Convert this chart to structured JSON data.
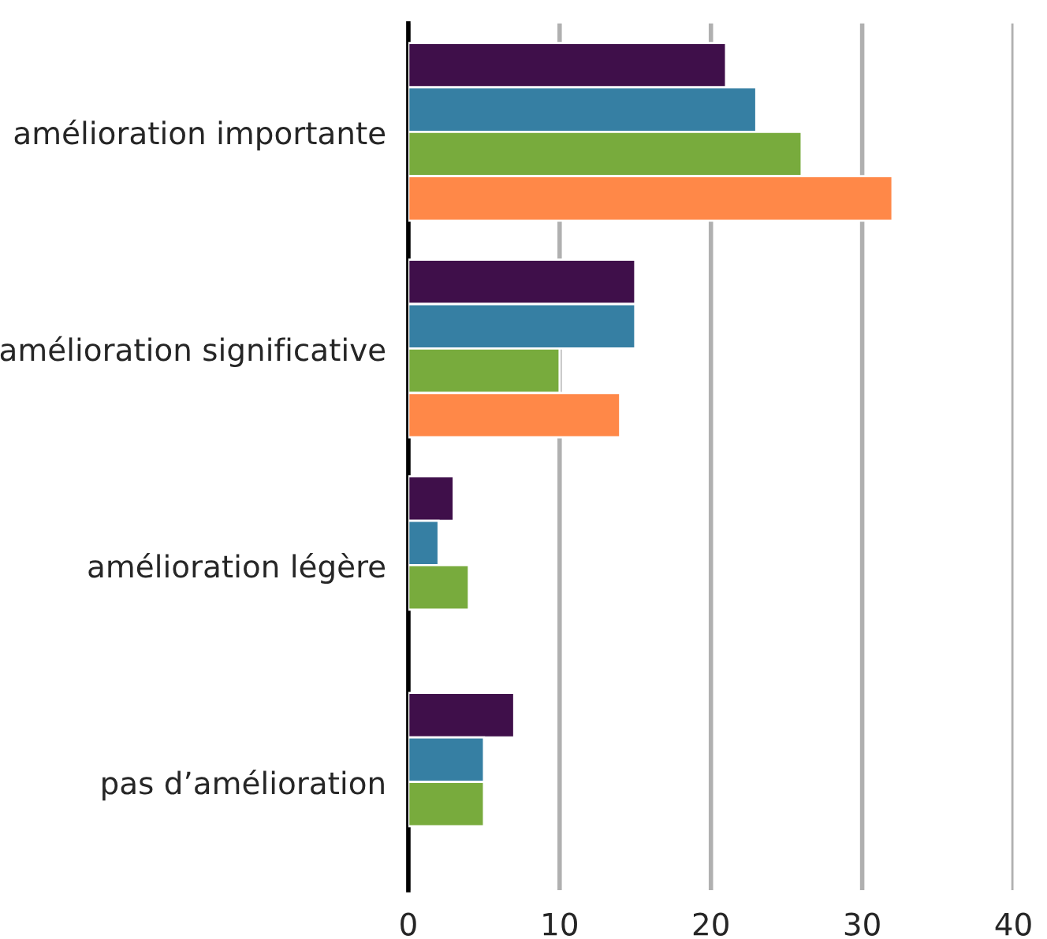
{
  "chart_data": {
    "type": "bar",
    "orientation": "horizontal",
    "categories": [
      "amélioration importante",
      "amélioration significative",
      "amélioration légère",
      "pas d’amélioration"
    ],
    "series": [
      {
        "color": "#3f0f4a",
        "values": [
          21,
          15,
          3,
          7
        ]
      },
      {
        "color": "#367fa3",
        "values": [
          23,
          15,
          2,
          5
        ]
      },
      {
        "color": "#78ab3d",
        "values": [
          26,
          10,
          4,
          5
        ]
      },
      {
        "color": "#ff8848",
        "values": [
          32,
          14,
          null,
          null
        ]
      }
    ],
    "xlim": [
      0,
      40
    ],
    "xticks": [
      0,
      10,
      20,
      30,
      40
    ],
    "grid": "x",
    "legend": false
  }
}
